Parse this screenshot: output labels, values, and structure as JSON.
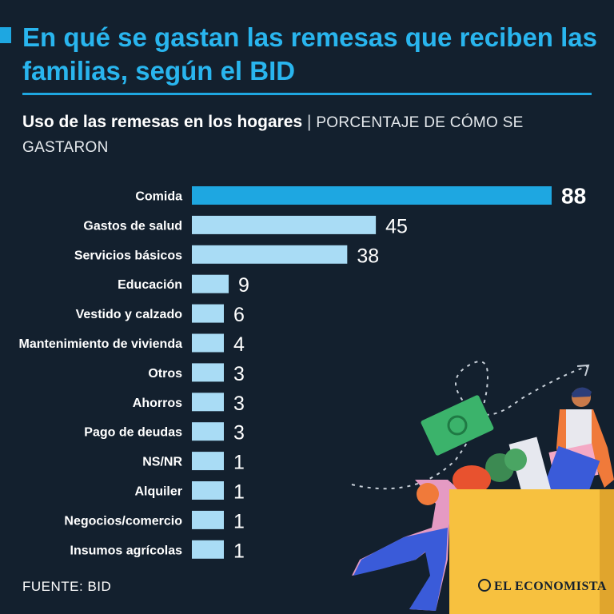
{
  "header": {
    "title": "En qué se gastan las remesas que reciben las familias, según el BID",
    "subtitle_main": "Uso de las remesas en los hogares",
    "subtitle_sep": "|",
    "subtitle_detail": "PORCENTAJE DE CÓMO SE GASTARON"
  },
  "footer": {
    "source": "FUENTE: BID",
    "brand": "EL ECONOMISTA"
  },
  "colors": {
    "background": "#13202e",
    "highlight_bar": "#1ea7e1",
    "bar": "#a9dcf5",
    "title": "#29b5ee"
  },
  "chart_data": {
    "type": "bar",
    "orientation": "horizontal",
    "title": "Uso de las remesas en los hogares",
    "unit": "porcentaje",
    "categories": [
      "Comida",
      "Gastos de salud",
      "Servicios básicos",
      "Educación",
      "Vestido y calzado",
      "Mantenimiento de vivienda",
      "Otros",
      "Ahorros",
      "Pago de deudas",
      "NS/NR",
      "Alquiler",
      "Negocios/comercio",
      "Insumos agrícolas"
    ],
    "values": [
      88,
      45,
      38,
      9,
      6,
      4,
      3,
      3,
      3,
      1,
      1,
      1,
      1
    ],
    "highlight_index": 0,
    "xlim": [
      0,
      88
    ],
    "grid": false,
    "xlabel": "",
    "ylabel": ""
  }
}
